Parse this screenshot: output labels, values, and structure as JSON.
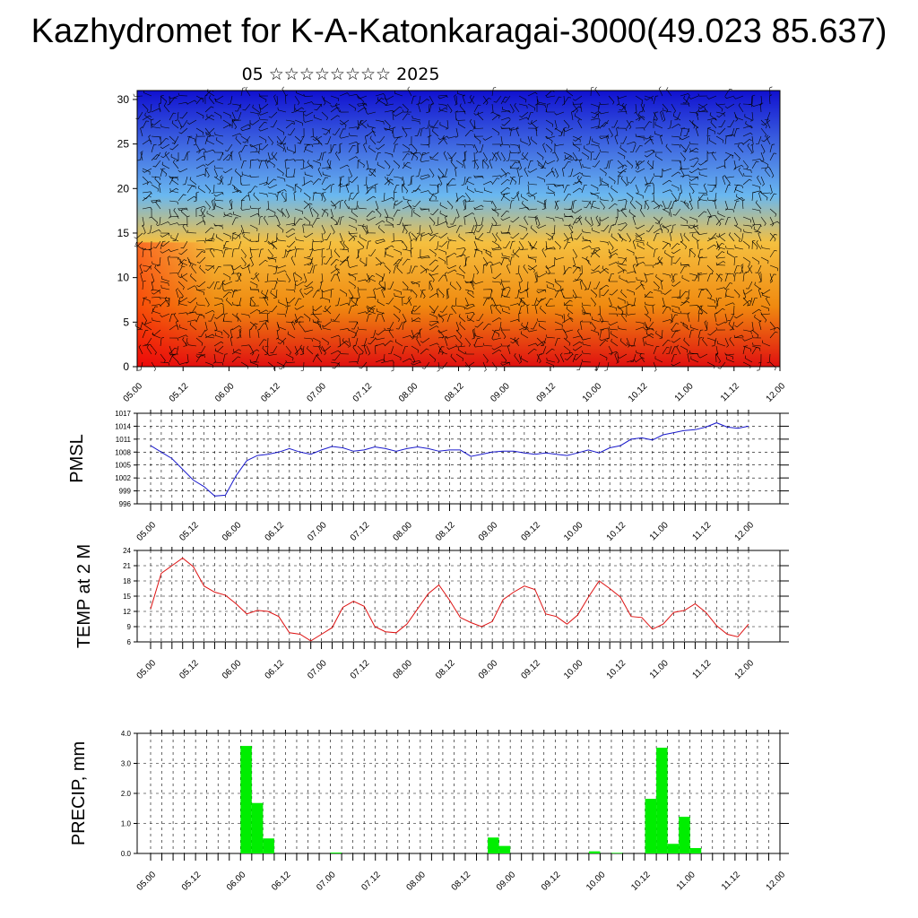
{
  "title": "Kazhydromet for K-A-Katonkaragai-3000(49.023 85.637)",
  "subtitle": "05 ☆☆☆☆☆☆☆☆ 2025",
  "chart_data": [
    {
      "type": "heatmap",
      "description_free": true,
      "ylim": [
        0,
        31
      ],
      "yticks": [
        "0",
        "5",
        "10",
        "15",
        "20",
        "25",
        "30"
      ],
      "xticks": [
        "05.00",
        "05.12",
        "06.00",
        "06.12",
        "07.00",
        "07.12",
        "08.00",
        "08.12",
        "09.00",
        "09.12",
        "10.00",
        "10.12",
        "11.00",
        "11.12",
        "12.00"
      ],
      "colors": {
        "bottom": "#e01010",
        "mid_low": "#f08a10",
        "mid": "#f5c040",
        "upper_mid": "#6ab8f0",
        "top": "#1010d0"
      },
      "overlay": "wind barbs"
    },
    {
      "type": "line",
      "ylabel": "PMSL",
      "ylim": [
        996,
        1017
      ],
      "yticks": [
        "996",
        "999",
        "1002",
        "1005",
        "1008",
        "1011",
        "1014",
        "1017"
      ],
      "xticks": [
        "05.00",
        "05.12",
        "06.00",
        "06.12",
        "07.00",
        "07.12",
        "08.00",
        "08.12",
        "09.00",
        "09.12",
        "10.00",
        "10.12",
        "11.00",
        "11.12",
        "12.00"
      ],
      "color": "#1a1acc",
      "x_step_hours": 3,
      "values": [
        1009.5,
        1008,
        1006.5,
        1004,
        1001.5,
        1000,
        997.8,
        998,
        1002.5,
        1006,
        1007.2,
        1007.5,
        1008,
        1008.8,
        1008,
        1007.5,
        1008.5,
        1009.3,
        1009,
        1008.2,
        1008.5,
        1009.2,
        1008.8,
        1008.2,
        1008.8,
        1009.2,
        1008.8,
        1008.2,
        1008.5,
        1008.5,
        1007,
        1007.5,
        1008,
        1008.2,
        1008.2,
        1007.8,
        1007.5,
        1007.8,
        1007.5,
        1007.2,
        1007.8,
        1008.5,
        1007.8,
        1009,
        1009.5,
        1011,
        1011.3,
        1010.8,
        1012,
        1012.5,
        1013,
        1013.2,
        1013.8,
        1014.8,
        1013.8,
        1013.5,
        1014
      ]
    },
    {
      "type": "line",
      "ylabel": "TEMP at 2 M",
      "ylim": [
        6,
        24
      ],
      "yticks": [
        "6",
        "9",
        "12",
        "15",
        "18",
        "21",
        "24"
      ],
      "xticks": [
        "05.00",
        "05.12",
        "06.00",
        "06.12",
        "07.00",
        "07.12",
        "08.00",
        "08.12",
        "09.00",
        "09.12",
        "10.00",
        "10.12",
        "11.00",
        "11.12",
        "12.00"
      ],
      "color": "#dd1111",
      "x_step_hours": 3,
      "values": [
        12.5,
        19.5,
        21,
        22.5,
        20.8,
        17,
        15.8,
        15.2,
        13.5,
        11.5,
        12.2,
        12,
        11,
        7.8,
        7.5,
        6.2,
        7.5,
        8.8,
        12.8,
        14,
        13,
        9,
        8,
        7.8,
        9.5,
        12.5,
        15.5,
        17.2,
        14.2,
        10.8,
        9.8,
        9,
        10,
        14.3,
        15.8,
        17,
        16.3,
        11.5,
        11,
        9.5,
        11.3,
        14.8,
        18,
        16.5,
        14.8,
        11,
        10.8,
        8.5,
        9.5,
        11.8,
        12.2,
        13.5,
        11.8,
        9.2,
        7.5,
        7,
        9.5
      ]
    },
    {
      "type": "bar",
      "ylabel": "PRECIP, mm",
      "ylim": [
        0,
        4
      ],
      "yticks": [
        "0.0",
        "1.0",
        "2.0",
        "3.0",
        "4.0"
      ],
      "xticks": [
        "05.00",
        "05.12",
        "06.00",
        "06.12",
        "07.00",
        "07.12",
        "08.00",
        "08.12",
        "09.00",
        "09.12",
        "10.00",
        "10.12",
        "11.00",
        "11.12",
        "12.00"
      ],
      "color": "#00ee00",
      "x_step_hours": 3,
      "values": [
        0,
        0,
        0,
        0,
        0,
        0,
        0,
        0,
        3.58,
        1.68,
        0.5,
        0,
        0,
        0,
        0,
        0,
        0.03,
        0,
        0,
        0,
        0,
        0,
        0,
        0,
        0,
        0,
        0,
        0,
        0,
        0,
        0.53,
        0.25,
        0,
        0,
        0,
        0,
        0,
        0,
        0,
        0.07,
        0,
        0.02,
        0,
        0,
        1.82,
        3.52,
        0.32,
        1.22,
        0.18,
        0,
        0,
        0,
        0,
        0,
        0,
        0
      ]
    }
  ]
}
